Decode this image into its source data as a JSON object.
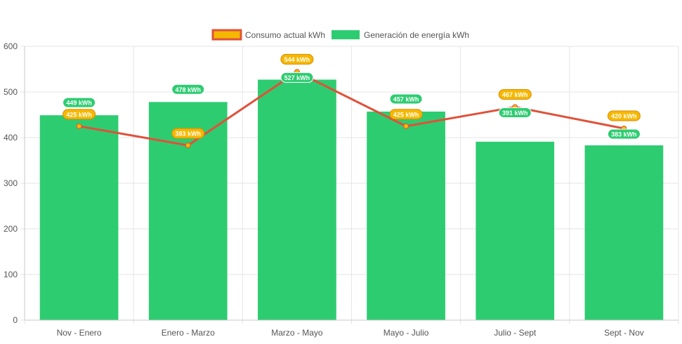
{
  "chart_data": {
    "type": "bar",
    "categories": [
      "Nov - Enero",
      "Enero - Marzo",
      "Marzo - Mayo",
      "Mayo - Julio",
      "Julio - Sept",
      "Sept - Nov"
    ],
    "series": [
      {
        "name": "Consumo actual kWh",
        "kind": "line",
        "values": [
          425,
          383,
          544,
          425,
          467,
          420
        ],
        "labels": [
          "425 kWh",
          "383 kWh",
          "544 kWh",
          "425 kWh",
          "467 kWh",
          "420 kWh"
        ],
        "color": "#e0513a",
        "marker_color": "#f5b800"
      },
      {
        "name": "Generación de energía kWh",
        "kind": "bar",
        "values": [
          449,
          478,
          527,
          457,
          391,
          383
        ],
        "labels": [
          "449 kWh",
          "478 kWh",
          "527 kWh",
          "457 kWh",
          "391 kWh",
          "383 kWh"
        ],
        "color": "#2ecc71"
      }
    ],
    "yticks": [
      "0",
      "100",
      "200",
      "300",
      "400",
      "500",
      "600"
    ],
    "ylim": [
      0,
      600
    ],
    "legend_position": "top-center",
    "grid": true
  },
  "legend": {
    "consumo_label": "Consumo actual kWh",
    "generacion_label": "Generación de energía kWh"
  },
  "colors": {
    "bar": "#2ecc71",
    "line": "#e0513a",
    "marker": "#f5b800",
    "grid": "#e6e6e6",
    "axis": "#c8c8c8",
    "text": "#555555"
  }
}
